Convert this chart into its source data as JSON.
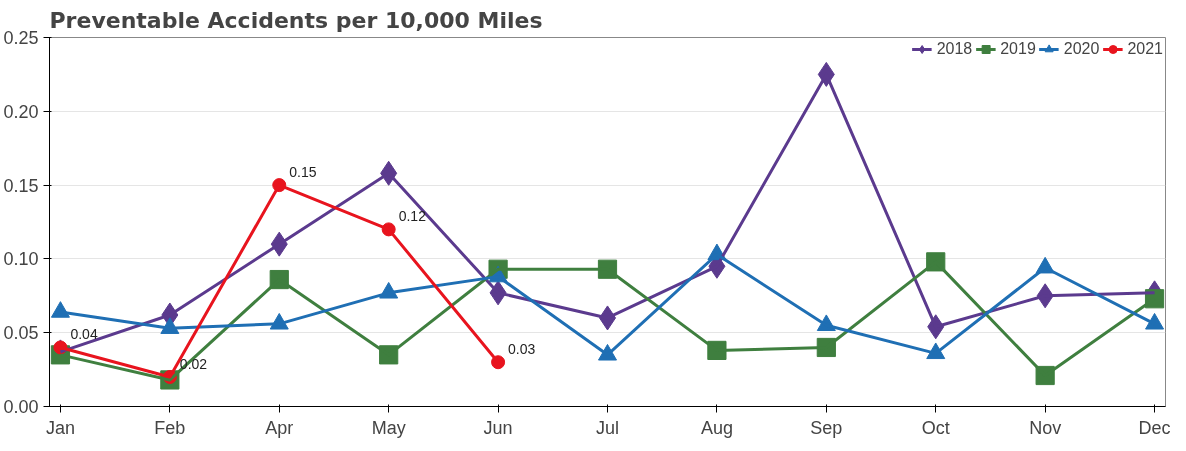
{
  "chart_data": {
    "type": "line",
    "title": "Preventable  Accidents per 10,000 Miles",
    "categories": [
      "Jan",
      "Feb",
      "Apr",
      "May",
      "Jun",
      "Jul",
      "Aug",
      "Sep",
      "Oct",
      "Nov",
      "Dec"
    ],
    "series": [
      {
        "name": "2018",
        "color": "#5b3a8e",
        "marker": "diamond",
        "values": [
          0.037,
          0.062,
          0.11,
          0.158,
          0.077,
          0.06,
          0.095,
          0.225,
          0.054,
          0.075,
          0.077
        ]
      },
      {
        "name": "2019",
        "color": "#3f7f3f",
        "marker": "square",
        "values": [
          0.035,
          0.018,
          0.086,
          0.035,
          0.093,
          0.093,
          0.038,
          0.04,
          0.098,
          0.021,
          0.073
        ]
      },
      {
        "name": "2020",
        "color": "#1f6fb4",
        "marker": "triangle",
        "values": [
          0.064,
          0.053,
          0.056,
          0.077,
          0.088,
          0.035,
          0.103,
          0.055,
          0.036,
          0.094,
          0.056
        ]
      },
      {
        "name": "2021",
        "color": "#e8141e",
        "marker": "circle",
        "values": [
          0.04,
          0.02,
          0.15,
          0.12,
          0.03,
          null,
          null,
          null,
          null,
          null,
          null
        ],
        "value_labels": [
          "0.04",
          "0.02",
          "0.15",
          "0.12",
          "0.03",
          null,
          null,
          null,
          null,
          null,
          null
        ]
      }
    ],
    "ylim": [
      0,
      0.25
    ],
    "yticks": [
      {
        "value": 0,
        "label": "0.00"
      },
      {
        "value": 0.05,
        "label": "0.05"
      },
      {
        "value": 0.1,
        "label": "0.10"
      },
      {
        "value": 0.15,
        "label": "0.15"
      },
      {
        "value": 0.2,
        "label": "0.20"
      },
      {
        "value": 0.25,
        "label": "0.25"
      }
    ],
    "grid": "y",
    "legend": "top right",
    "line_style": "solid"
  }
}
